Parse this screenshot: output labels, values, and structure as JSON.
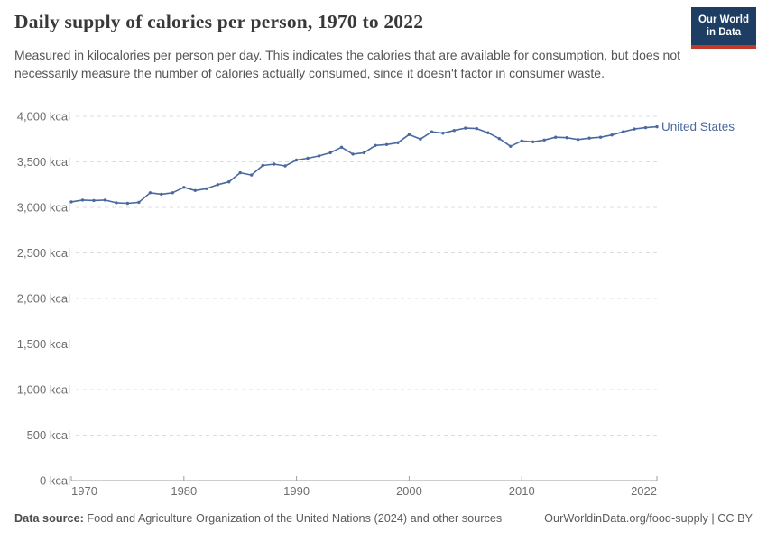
{
  "header": {
    "title": "Daily supply of calories per person, 1970 to 2022",
    "subtitle": "Measured in kilocalories per person per day. This indicates the calories that are available for consumption, but does not necessarily measure the number of calories actually consumed, since it doesn't factor in consumer waste.",
    "logo": {
      "line1": "Our World",
      "line2": "in Data"
    }
  },
  "chart_data": {
    "type": "line",
    "title": "Daily supply of calories per person, 1970 to 2022",
    "xlabel": "",
    "ylabel": "",
    "xlim": [
      1970,
      2022
    ],
    "ylim": [
      0,
      4000
    ],
    "x_ticks": [
      1970,
      1980,
      1990,
      2000,
      2010,
      2022
    ],
    "y_ticks": [
      0,
      500,
      1000,
      1500,
      2000,
      2500,
      3000,
      3500,
      4000
    ],
    "y_tick_suffix": " kcal",
    "grid": "dashed-horizontal",
    "legend_position": "end-of-line",
    "series": [
      {
        "name": "United States",
        "color": "#4a69a0",
        "x": [
          1970,
          1971,
          1972,
          1973,
          1974,
          1975,
          1976,
          1977,
          1978,
          1979,
          1980,
          1981,
          1982,
          1983,
          1984,
          1985,
          1986,
          1987,
          1988,
          1989,
          1990,
          1991,
          1992,
          1993,
          1994,
          1995,
          1996,
          1997,
          1998,
          1999,
          2000,
          2001,
          2002,
          2003,
          2004,
          2005,
          2006,
          2007,
          2008,
          2009,
          2010,
          2011,
          2012,
          2013,
          2014,
          2015,
          2016,
          2017,
          2018,
          2019,
          2020,
          2021,
          2022
        ],
        "values": [
          3060,
          3080,
          3075,
          3080,
          3050,
          3045,
          3055,
          3160,
          3145,
          3160,
          3220,
          3185,
          3205,
          3250,
          3280,
          3380,
          3355,
          3460,
          3475,
          3455,
          3520,
          3540,
          3565,
          3600,
          3660,
          3585,
          3600,
          3680,
          3690,
          3710,
          3800,
          3750,
          3830,
          3815,
          3845,
          3870,
          3865,
          3820,
          3755,
          3670,
          3730,
          3720,
          3740,
          3770,
          3765,
          3745,
          3760,
          3770,
          3795,
          3830,
          3860,
          3875,
          3885
        ]
      }
    ]
  },
  "footer": {
    "datasource_label": "Data source:",
    "datasource_text": " Food and Agriculture Organization of the United Nations (2024) and other sources",
    "link_text": "OurWorldinData.org/food-supply | CC BY"
  },
  "colors": {
    "series_blue": "#4a69a0",
    "logo_navy": "#1d3d63",
    "logo_red": "#c0392b",
    "gridline": "#dcdcdc",
    "axis": "#9e9e9e",
    "tick_text": "#6e6e6e",
    "title_text": "#383838",
    "subtitle_text": "#555555"
  }
}
